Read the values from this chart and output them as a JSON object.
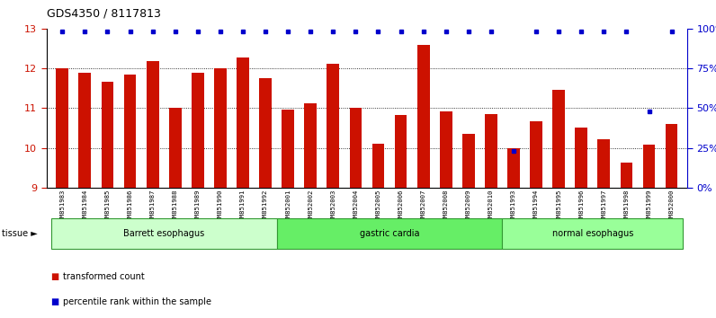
{
  "title": "GDS4350 / 8117813",
  "samples": [
    "GSM851983",
    "GSM851984",
    "GSM851985",
    "GSM851986",
    "GSM851987",
    "GSM851988",
    "GSM851989",
    "GSM851990",
    "GSM851991",
    "GSM851992",
    "GSM852001",
    "GSM852002",
    "GSM852003",
    "GSM852004",
    "GSM852005",
    "GSM852006",
    "GSM852007",
    "GSM852008",
    "GSM852009",
    "GSM852010",
    "GSM851993",
    "GSM851994",
    "GSM851995",
    "GSM851996",
    "GSM851997",
    "GSM851998",
    "GSM851999",
    "GSM852000"
  ],
  "bar_values": [
    12.01,
    11.88,
    11.67,
    11.85,
    12.18,
    11.0,
    11.88,
    12.0,
    12.27,
    11.75,
    10.97,
    11.13,
    12.12,
    11.0,
    10.1,
    10.82,
    12.58,
    10.92,
    10.35,
    10.85,
    10.0,
    10.68,
    11.45,
    10.5,
    10.22,
    9.62,
    10.08,
    10.6
  ],
  "percentile_values": [
    100,
    100,
    100,
    100,
    100,
    100,
    100,
    100,
    100,
    100,
    100,
    100,
    100,
    100,
    100,
    100,
    100,
    100,
    100,
    100,
    25,
    100,
    100,
    100,
    100,
    100,
    50,
    100
  ],
  "groups": [
    {
      "label": "Barrett esophagus",
      "start": 0,
      "end": 9,
      "color": "#ccffcc"
    },
    {
      "label": "gastric cardia",
      "start": 10,
      "end": 19,
      "color": "#66ee66"
    },
    {
      "label": "normal esophagus",
      "start": 20,
      "end": 27,
      "color": "#99ff99"
    }
  ],
  "bar_color": "#cc1100",
  "blue_color": "#0000cc",
  "ylim_left": [
    9,
    13
  ],
  "ylim_right": [
    0,
    100
  ],
  "yticks_left": [
    9,
    10,
    11,
    12,
    13
  ],
  "yticks_right": [
    0,
    25,
    50,
    75,
    100
  ],
  "ytick_labels_right": [
    "0",
    "25",
    "50",
    "75",
    "100%"
  ],
  "background_color": "#ffffff",
  "legend_items": [
    {
      "color": "#cc1100",
      "label": "transformed count"
    },
    {
      "color": "#0000cc",
      "label": "percentile rank within the sample"
    }
  ]
}
